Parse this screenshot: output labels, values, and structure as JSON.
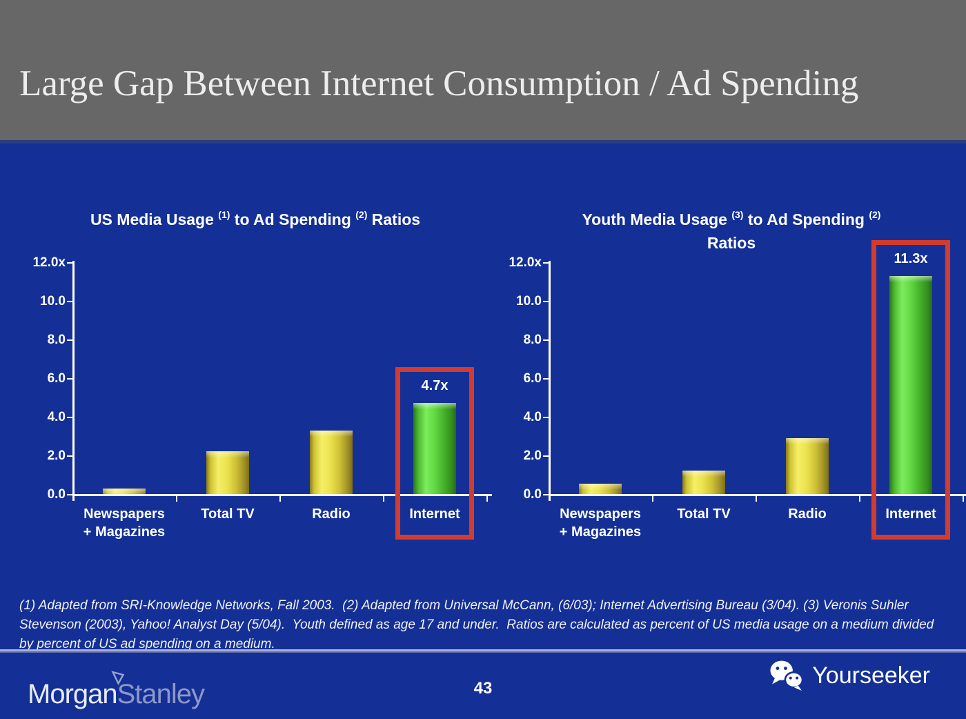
{
  "slide": {
    "title": "Large Gap Between Internet Consumption / Ad Spending",
    "page_number": "43",
    "footnote": "(1) Adapted from SRI-Knowledge Networks, Fall 2003.  (2) Adapted from Universal McCann, (6/03); Internet Advertising Bureau (3/04). (3) Veronis Suhler Stevenson (2003), Yahoo! Analyst Day (5/04).  Youth defined as age 17 and under.  Ratios are calculated as percent of US media usage on a medium divided by percent of US ad spending on a medium."
  },
  "branding": {
    "morgan": "Morgan",
    "stanley": "Stanley",
    "yourseeker": "Yourseeker"
  },
  "colors": {
    "header_bg": "#676767",
    "body_bg": "#143097",
    "bar_yellow": "#e8dc3c",
    "bar_green": "#55cf35",
    "highlight_red": "#d23b2e",
    "axis_white": "#ffffff",
    "logo_muted": "#8d98c6"
  },
  "chart_data": [
    {
      "type": "bar",
      "title_lines": [
        [
          {
            "t": "US Media Usage "
          },
          {
            "t": "(1)",
            "sup": true
          },
          {
            "t": " to Ad Spending "
          },
          {
            "t": "(2)",
            "sup": true
          },
          {
            "t": " Ratios"
          }
        ]
      ],
      "categories": [
        [
          "Newspapers",
          "+ Magazines"
        ],
        [
          "Total TV"
        ],
        [
          "Radio"
        ],
        [
          "Internet"
        ]
      ],
      "values": [
        0.3,
        2.2,
        3.3,
        4.7
      ],
      "bar_colors": [
        "yellow",
        "yellow",
        "yellow",
        "green"
      ],
      "highlight_index": 3,
      "highlight_label": "4.7x",
      "y_ticks": [
        {
          "v": 12,
          "label": "12.0x"
        },
        {
          "v": 10,
          "label": "10.0"
        },
        {
          "v": 8,
          "label": "8.0"
        },
        {
          "v": 6,
          "label": "6.0"
        },
        {
          "v": 4,
          "label": "4.0"
        },
        {
          "v": 2,
          "label": "2.0"
        },
        {
          "v": 0,
          "label": "0.0"
        }
      ],
      "ylim": [
        0,
        12
      ],
      "grid": false,
      "xlabel": "",
      "ylabel": ""
    },
    {
      "type": "bar",
      "title_lines": [
        [
          {
            "t": "Youth Media Usage "
          },
          {
            "t": "(3)",
            "sup": true
          },
          {
            "t": " to Ad Spending "
          },
          {
            "t": "(2)",
            "sup": true
          }
        ],
        [
          {
            "t": "Ratios"
          }
        ]
      ],
      "categories": [
        [
          "Newspapers",
          "+ Magazines"
        ],
        [
          "Total TV"
        ],
        [
          "Radio"
        ],
        [
          "Internet"
        ]
      ],
      "values": [
        0.55,
        1.2,
        2.9,
        11.3
      ],
      "bar_colors": [
        "yellow",
        "yellow",
        "yellow",
        "green"
      ],
      "highlight_index": 3,
      "highlight_label": "11.3x",
      "y_ticks": [
        {
          "v": 12,
          "label": "12.0x"
        },
        {
          "v": 10,
          "label": "10.0"
        },
        {
          "v": 8,
          "label": "8.0"
        },
        {
          "v": 6,
          "label": "6.0"
        },
        {
          "v": 4,
          "label": "4.0"
        },
        {
          "v": 2,
          "label": "2.0"
        },
        {
          "v": 0,
          "label": "0.0"
        }
      ],
      "ylim": [
        0,
        12
      ],
      "grid": false,
      "xlabel": "",
      "ylabel": ""
    }
  ]
}
